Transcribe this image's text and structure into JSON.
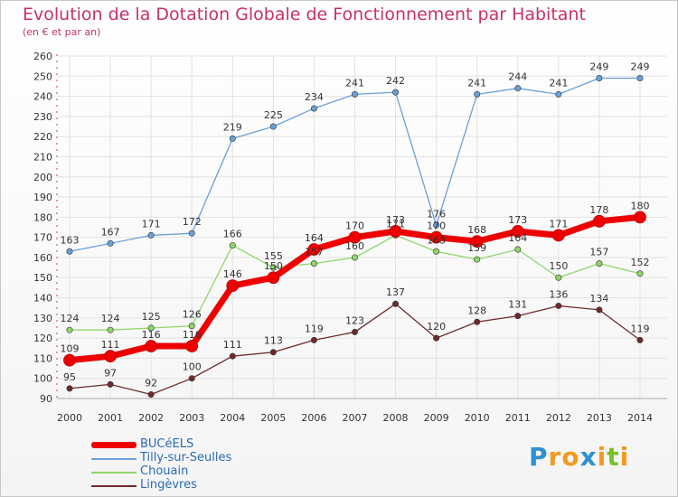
{
  "header": {
    "title": "Evolution de la Dotation Globale de Fonctionnement par Habitant",
    "subtitle": "(en € et par an)"
  },
  "logo": {
    "letters": [
      "P",
      "r",
      "o",
      "x",
      "i",
      "t",
      "i"
    ],
    "colors": [
      "#2f8fd0",
      "#f39a1e",
      "#f39a1e",
      "#2f8fd0",
      "#f39a1e",
      "#7bbf2a",
      "#f39a1e"
    ]
  },
  "chart_data": {
    "type": "line",
    "title": "Evolution de la Dotation Globale de Fonctionnement par Habitant",
    "subtitle": "(en € et par an)",
    "xlabel": "",
    "ylabel": "",
    "categories": [
      "2000",
      "2001",
      "2002",
      "2003",
      "2004",
      "2005",
      "2006",
      "2007",
      "2008",
      "2009",
      "2010",
      "2011",
      "2012",
      "2013",
      "2014"
    ],
    "ylim": [
      90,
      260
    ],
    "yticks": [
      "90",
      "100",
      "110",
      "120",
      "130",
      "140",
      "150",
      "160",
      "170",
      "180",
      "190",
      "200",
      "210",
      "220",
      "230",
      "240",
      "250",
      "260"
    ],
    "grid": true,
    "legend_position": "bottom-left",
    "series": [
      {
        "name": "BUCéELS",
        "color": "#ee0000",
        "values": [
          109,
          111,
          116,
          116,
          146,
          150,
          164,
          170,
          173,
          170,
          168,
          173,
          171,
          178,
          180
        ]
      },
      {
        "name": "Tilly-sur-Seulles",
        "color": "#6aa0d8",
        "values": [
          163,
          167,
          171,
          172,
          219,
          225,
          234,
          241,
          242,
          176,
          241,
          244,
          241,
          249,
          249
        ]
      },
      {
        "name": "Chouain",
        "color": "#8ed66a",
        "values": [
          124,
          124,
          125,
          126,
          166,
          155,
          157,
          160,
          171,
          163,
          159,
          164,
          150,
          157,
          152
        ]
      },
      {
        "name": "Lingèvres",
        "color": "#6e2a2a",
        "values": [
          95,
          97,
          92,
          100,
          111,
          113,
          119,
          123,
          137,
          120,
          128,
          131,
          136,
          134,
          119
        ]
      }
    ]
  }
}
